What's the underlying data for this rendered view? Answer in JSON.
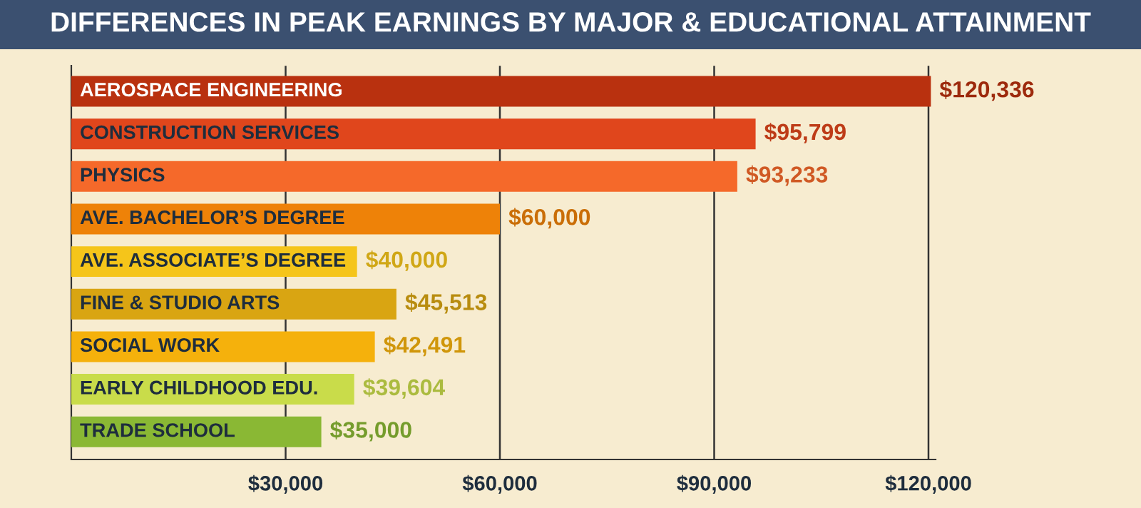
{
  "chart_data": {
    "type": "bar",
    "orientation": "horizontal",
    "title": "DIFFERENCES IN PEAK EARNINGS BY MAJOR & EDUCATIONAL ATTAINMENT",
    "categories": [
      "AEROSPACE ENGINEERING",
      "CONSTRUCTION SERVICES",
      "PHYSICS",
      "AVE. BACHELOR’S DEGREE",
      "AVE. ASSOCIATE’S DEGREE",
      "FINE & STUDIO ARTS",
      "SOCIAL WORK",
      "EARLY CHILDHOOD EDU.",
      "TRADE SCHOOL"
    ],
    "values": [
      120336,
      95799,
      93233,
      60000,
      40000,
      45513,
      42491,
      39604,
      35000
    ],
    "colors": [
      "#b9310f",
      "#e0461c",
      "#f5692a",
      "#ee8208",
      "#f5c51a",
      "#d9a512",
      "#f5b10c",
      "#c9dc4a",
      "#8ab834"
    ],
    "value_labels": [
      "$120,336",
      "$95,799",
      "$93,233",
      "$60,000",
      "$40,000",
      "$45,513",
      "$42,491",
      "$39,604",
      "$35,000"
    ],
    "xlim": [
      0,
      121000
    ],
    "xticks": [
      {
        "value": 30000,
        "label": "$30,000"
      },
      {
        "value": 60000,
        "label": "$60,000"
      },
      {
        "value": 90000,
        "label": "$90,000"
      },
      {
        "value": 120000,
        "label": "$120,000"
      }
    ],
    "grid": "x"
  }
}
